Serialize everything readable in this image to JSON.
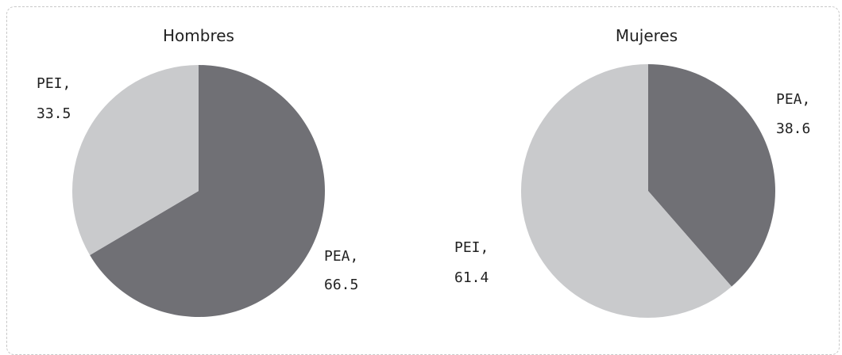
{
  "chart_data": [
    {
      "type": "pie",
      "title": "Hombres",
      "slices": [
        {
          "label": "PEA",
          "value": 66.5,
          "color": "#707075"
        },
        {
          "label": "PEI",
          "value": 33.5,
          "color": "#c9cacc"
        }
      ]
    },
    {
      "type": "pie",
      "title": "Mujeres",
      "slices": [
        {
          "label": "PEA",
          "value": 38.6,
          "color": "#707075"
        },
        {
          "label": "PEI",
          "value": 61.4,
          "color": "#c9cacc"
        }
      ]
    }
  ]
}
